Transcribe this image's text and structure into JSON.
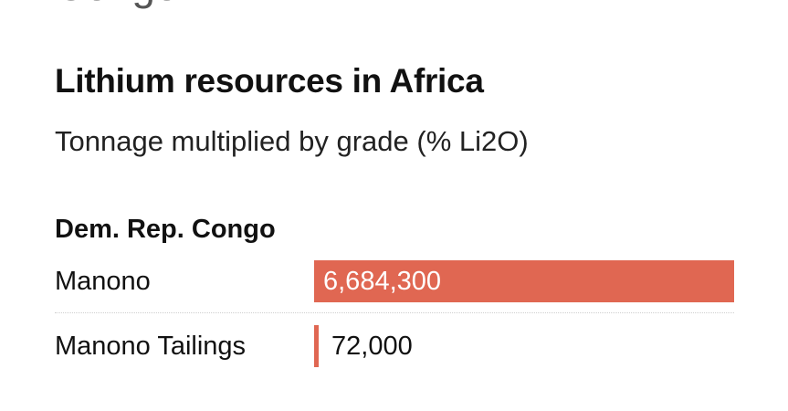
{
  "header": {
    "cut_text": "Congo"
  },
  "chart_data": {
    "type": "bar",
    "orientation": "horizontal",
    "title": "Lithium resources in Africa",
    "subtitle": "Tonnage multiplied by grade (% Li2O)",
    "groups": [
      {
        "name": "Dem. Rep. Congo",
        "categories": [
          "Manono",
          "Manono Tailings"
        ],
        "values": [
          6684300,
          72000
        ],
        "value_labels": [
          "6,684,300",
          "72,000"
        ]
      }
    ],
    "xlim": [
      0,
      6684300
    ],
    "grid": false,
    "legend": "none",
    "bar_color": "#e06752"
  }
}
